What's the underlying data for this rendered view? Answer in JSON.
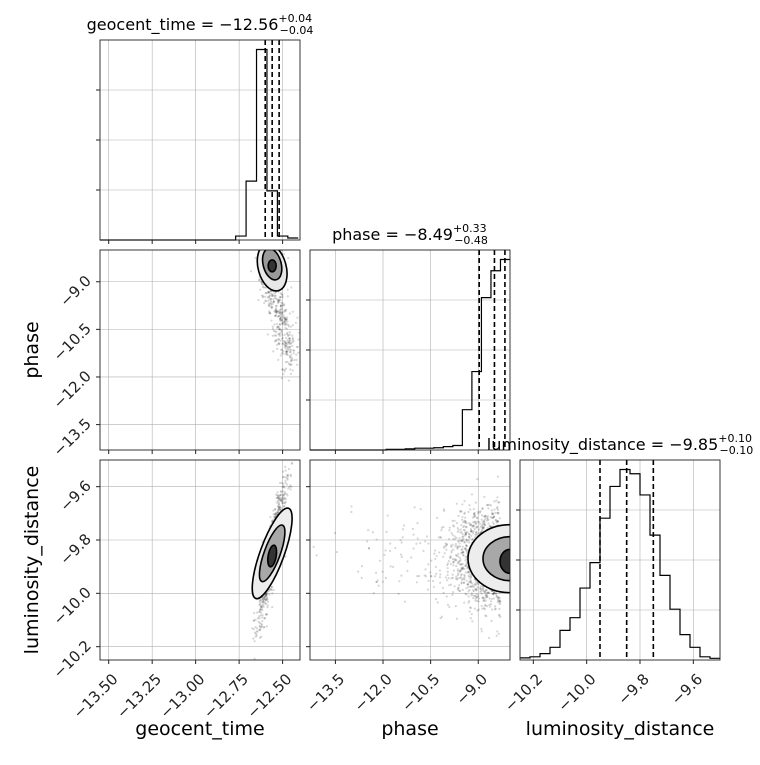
{
  "chart_data": {
    "type": "corner",
    "parameters": [
      "geocent_time",
      "phase",
      "luminosity_distance"
    ],
    "axis_labels": [
      "geocent_time",
      "phase",
      "luminosity_distance"
    ],
    "ranges": [
      [
        -13.55,
        -12.4
      ],
      [
        -14.3,
        -8.0
      ],
      [
        -10.25,
        -9.5
      ]
    ],
    "ticks": [
      [
        -13.5,
        -13.25,
        -13.0,
        -12.75,
        -12.5
      ],
      [
        -13.5,
        -12.0,
        -10.5,
        -9.0
      ],
      [
        -10.2,
        -10.0,
        -9.8,
        -9.6
      ]
    ],
    "tick_labels": [
      [
        "−13.50",
        "−13.25",
        "−13.00",
        "−12.75",
        "−12.50"
      ],
      [
        "−13.5",
        "−12.0",
        "−10.5",
        "−9.0"
      ],
      [
        "−10.2",
        "−10.0",
        "−9.8",
        "−9.6"
      ]
    ],
    "grid": true,
    "titles": [
      {
        "name": "geocent_time",
        "median": "−12.56",
        "plus": "+0.04",
        "minus": "−0.04"
      },
      {
        "name": "phase",
        "median": "−8.49",
        "plus": "+0.33",
        "minus": "−0.48"
      },
      {
        "name": "luminosity_distance",
        "median": "−9.85",
        "plus": "+0.10",
        "minus": "−0.10"
      }
    ],
    "quantiles": [
      [
        -12.6,
        -12.56,
        -12.52
      ],
      [
        -8.97,
        -8.49,
        -8.16
      ],
      [
        -9.95,
        -9.85,
        -9.75
      ]
    ],
    "histograms": [
      {
        "edges": [
          -13.55,
          -13.49,
          -13.43,
          -13.37,
          -13.31,
          -13.25,
          -13.19,
          -13.13,
          -13.07,
          -13.01,
          -12.95,
          -12.89,
          -12.83,
          -12.77,
          -12.71,
          -12.65,
          -12.59,
          -12.53,
          -12.47,
          -12.41
        ],
        "counts": [
          0,
          0,
          0,
          0,
          0,
          0,
          0,
          0,
          0,
          0,
          0,
          0,
          0,
          2,
          30,
          97,
          25,
          2,
          1
        ]
      },
      {
        "edges": [
          -14.3,
          -14.0,
          -13.7,
          -13.4,
          -13.1,
          -12.8,
          -12.5,
          -12.2,
          -11.9,
          -11.6,
          -11.3,
          -11.0,
          -10.7,
          -10.4,
          -10.1,
          -9.8,
          -9.5,
          -9.2,
          -8.9,
          -8.6,
          -8.3,
          -8.0
        ],
        "counts": [
          0,
          0,
          0,
          0,
          0,
          0,
          0,
          0,
          0.3,
          0.3,
          0.5,
          0.8,
          0.8,
          1.0,
          1.5,
          2.0,
          18,
          35,
          68,
          80,
          85
        ]
      },
      {
        "edges": [
          -10.25,
          -10.2125,
          -10.175,
          -10.1375,
          -10.1,
          -10.0625,
          -10.025,
          -9.9875,
          -9.95,
          -9.9125,
          -9.875,
          -9.8375,
          -9.8,
          -9.7625,
          -9.725,
          -9.6875,
          -9.65,
          -9.6125,
          -9.575,
          -9.5375,
          -9.5
        ],
        "counts": [
          1,
          1.5,
          3,
          6,
          14,
          20,
          34,
          46,
          67,
          82,
          90,
          88,
          78,
          59,
          40,
          24,
          12,
          6,
          1.5,
          0.8
        ]
      }
    ]
  }
}
